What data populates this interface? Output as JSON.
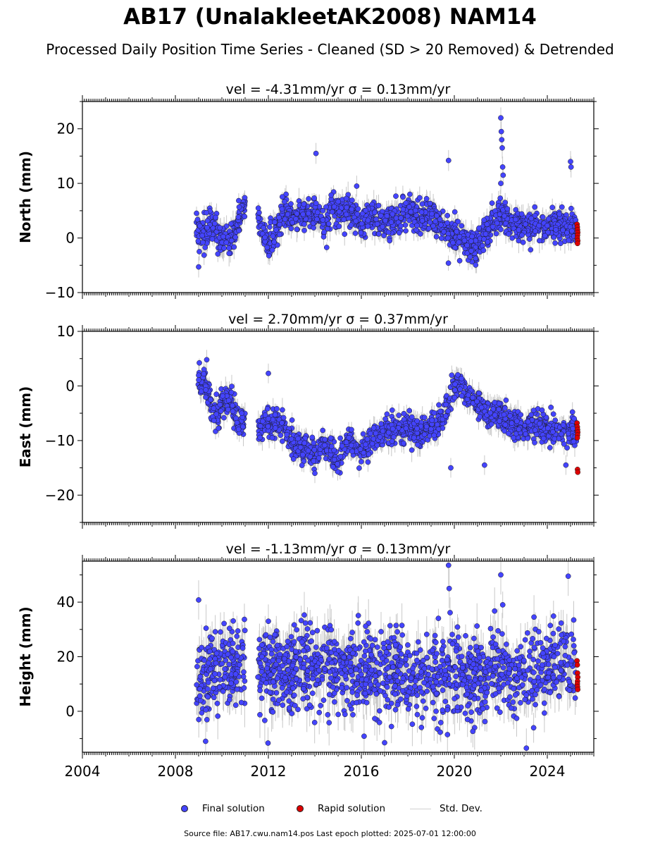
{
  "figure": {
    "title": "AB17 (UnalakleetAK2008) NAM14",
    "subtitle": "Processed Daily Position Time Series - Cleaned (SD > 20 Removed) & Detrended",
    "footer": "Source file: AB17.cwu.nam14.pos  Last epoch plotted: 2025-07-01 12:00:00"
  },
  "colors": {
    "final": "#4444ff",
    "rapid": "#dd0000",
    "stddev": "#c8c8c8",
    "marker_edge": "#1a1a1a"
  },
  "legend": {
    "final_label": "Final solution",
    "rapid_label": "Rapid solution",
    "stddev_label": "Std. Dev."
  },
  "chart_data": [
    {
      "type": "scatter",
      "title": "vel = -4.31mm/yr   σ = 0.13mm/yr",
      "ylabel": "North (mm)",
      "xlim": [
        2004.0,
        2026.0
      ],
      "ylim": [
        -10,
        25
      ],
      "yticks": [
        "−10",
        "0",
        "10",
        "20"
      ],
      "ytick_values": [
        -10,
        0,
        10,
        20
      ],
      "xticks": [],
      "data_span": [
        2008.9,
        2025.25
      ],
      "gap": [
        2011.0,
        2011.55
      ],
      "trend": [
        [
          2008.9,
          1.5
        ],
        [
          2009.2,
          0.5
        ],
        [
          2009.5,
          2.5
        ],
        [
          2009.8,
          1.0
        ],
        [
          2010.1,
          -1.0
        ],
        [
          2010.4,
          0.0
        ],
        [
          2010.8,
          4.0
        ],
        [
          2011.0,
          5.5
        ],
        [
          2011.6,
          3.5
        ],
        [
          2012.0,
          -1.0
        ],
        [
          2012.3,
          1.0
        ],
        [
          2012.7,
          5.0
        ],
        [
          2013.1,
          3.5
        ],
        [
          2013.5,
          4.5
        ],
        [
          2014.0,
          5.0
        ],
        [
          2014.4,
          3.0
        ],
        [
          2014.8,
          5.5
        ],
        [
          2015.2,
          4.5
        ],
        [
          2015.6,
          5.0
        ],
        [
          2016.0,
          2.5
        ],
        [
          2016.5,
          4.0
        ],
        [
          2017.0,
          2.5
        ],
        [
          2017.5,
          3.5
        ],
        [
          2018.0,
          5.0
        ],
        [
          2018.5,
          4.0
        ],
        [
          2019.0,
          4.0
        ],
        [
          2019.5,
          2.0
        ],
        [
          2020.0,
          0.5
        ],
        [
          2020.5,
          -1.0
        ],
        [
          2020.9,
          -2.0
        ],
        [
          2021.3,
          1.0
        ],
        [
          2021.7,
          3.0
        ],
        [
          2022.0,
          4.0
        ],
        [
          2022.5,
          3.0
        ],
        [
          2023.0,
          1.5
        ],
        [
          2023.5,
          3.0
        ],
        [
          2024.0,
          2.0
        ],
        [
          2024.5,
          2.5
        ],
        [
          2025.25,
          2.0
        ]
      ],
      "noise_sd": 1.4,
      "sigma_mean": 1.6,
      "outliers": [
        [
          2014.05,
          15.5
        ],
        [
          2019.75,
          14.2
        ],
        [
          2022.0,
          22.0
        ],
        [
          2022.02,
          19.5
        ],
        [
          2022.04,
          18.0
        ],
        [
          2022.06,
          16.5
        ],
        [
          2022.08,
          13.0
        ],
        [
          2022.1,
          11.5
        ],
        [
          2022.0,
          10.0
        ],
        [
          2025.0,
          14.0
        ],
        [
          2025.02,
          13.0
        ],
        [
          2009.0,
          -5.3
        ],
        [
          2015.8,
          9.5
        ]
      ],
      "rapid": {
        "x": [
          2025.28,
          2025.29,
          2025.3,
          2025.31,
          2025.3,
          2025.29,
          2025.31,
          2025.3
        ],
        "y": [
          2.5,
          2.0,
          1.5,
          1.0,
          0.5,
          0.0,
          -0.5,
          -1.0
        ]
      }
    },
    {
      "type": "scatter",
      "title": "vel = 2.70mm/yr   σ = 0.37mm/yr",
      "ylabel": "East (mm)",
      "xlim": [
        2004.0,
        2026.0
      ],
      "ylim": [
        -25,
        10
      ],
      "yticks": [
        "−20",
        "−10",
        "0",
        "10"
      ],
      "ytick_values": [
        -20,
        -10,
        0,
        10
      ],
      "xticks": [],
      "data_span": [
        2008.9,
        2025.25
      ],
      "gap": [
        2011.0,
        2011.55
      ],
      "trend": [
        [
          2008.9,
          0.0
        ],
        [
          2009.2,
          1.0
        ],
        [
          2009.5,
          -3.0
        ],
        [
          2009.8,
          -5.5
        ],
        [
          2010.1,
          -2.0
        ],
        [
          2010.4,
          -2.5
        ],
        [
          2010.7,
          -7.0
        ],
        [
          2011.0,
          -6.5
        ],
        [
          2011.6,
          -8.0
        ],
        [
          2011.9,
          -7.5
        ],
        [
          2012.3,
          -6.5
        ],
        [
          2012.7,
          -8.0
        ],
        [
          2013.1,
          -10.5
        ],
        [
          2013.5,
          -11.5
        ],
        [
          2014.0,
          -12.5
        ],
        [
          2014.5,
          -11.0
        ],
        [
          2015.0,
          -13.0
        ],
        [
          2015.5,
          -10.0
        ],
        [
          2016.0,
          -12.5
        ],
        [
          2016.5,
          -9.0
        ],
        [
          2017.0,
          -8.5
        ],
        [
          2017.5,
          -8.0
        ],
        [
          2018.0,
          -7.5
        ],
        [
          2018.5,
          -8.5
        ],
        [
          2019.0,
          -8.0
        ],
        [
          2019.5,
          -6.0
        ],
        [
          2019.9,
          -1.0
        ],
        [
          2020.2,
          0.5
        ],
        [
          2020.6,
          -2.5
        ],
        [
          2021.0,
          -3.0
        ],
        [
          2021.4,
          -5.5
        ],
        [
          2021.8,
          -5.0
        ],
        [
          2022.2,
          -6.0
        ],
        [
          2022.6,
          -7.0
        ],
        [
          2023.0,
          -8.0
        ],
        [
          2023.5,
          -7.0
        ],
        [
          2024.0,
          -8.0
        ],
        [
          2024.5,
          -8.5
        ],
        [
          2025.25,
          -8.0
        ]
      ],
      "noise_sd": 1.3,
      "sigma_mean": 1.5,
      "outliers": [
        [
          2009.35,
          4.8
        ],
        [
          2012.0,
          2.3
        ],
        [
          2014.0,
          -16.0
        ],
        [
          2019.85,
          -15.0
        ],
        [
          2021.3,
          -14.5
        ],
        [
          2024.8,
          -14.5
        ]
      ],
      "rapid": {
        "x": [
          2025.28,
          2025.29,
          2025.3,
          2025.31,
          2025.3,
          2025.29,
          2025.3,
          2025.31
        ],
        "y": [
          -6.8,
          -7.5,
          -8.0,
          -8.5,
          -9.0,
          -9.5,
          -15.3,
          -15.8
        ]
      }
    },
    {
      "type": "scatter",
      "title": "vel = -1.13mm/yr   σ = 0.13mm/yr",
      "ylabel": "Height (mm)",
      "xlim": [
        2004.0,
        2026.0
      ],
      "ylim": [
        -15,
        55
      ],
      "yticks": [
        "0",
        "20",
        "40"
      ],
      "ytick_values": [
        0,
        20,
        40
      ],
      "xticks": [
        "2004",
        "2008",
        "2012",
        "2016",
        "2020",
        "2024"
      ],
      "xtick_values": [
        2004,
        2008,
        2012,
        2016,
        2020,
        2024
      ],
      "data_span": [
        2008.9,
        2025.25
      ],
      "gap": [
        2011.0,
        2011.55
      ],
      "trend": [
        [
          2008.9,
          10.0
        ],
        [
          2009.5,
          15.0
        ],
        [
          2010.0,
          18.0
        ],
        [
          2010.5,
          17.0
        ],
        [
          2011.0,
          18.0
        ],
        [
          2011.6,
          16.0
        ],
        [
          2012.0,
          14.0
        ],
        [
          2012.5,
          15.0
        ],
        [
          2013.0,
          13.0
        ],
        [
          2013.5,
          15.0
        ],
        [
          2014.0,
          14.0
        ],
        [
          2014.5,
          16.0
        ],
        [
          2015.0,
          15.0
        ],
        [
          2015.5,
          14.0
        ],
        [
          2016.0,
          13.0
        ],
        [
          2016.5,
          16.0
        ],
        [
          2017.0,
          14.0
        ],
        [
          2017.5,
          14.0
        ],
        [
          2018.0,
          13.0
        ],
        [
          2018.5,
          15.0
        ],
        [
          2019.0,
          14.0
        ],
        [
          2019.5,
          13.0
        ],
        [
          2020.0,
          14.0
        ],
        [
          2020.5,
          12.0
        ],
        [
          2021.0,
          13.0
        ],
        [
          2021.5,
          14.0
        ],
        [
          2022.0,
          15.0
        ],
        [
          2022.5,
          12.0
        ],
        [
          2023.0,
          14.0
        ],
        [
          2023.5,
          15.0
        ],
        [
          2024.0,
          15.0
        ],
        [
          2024.5,
          18.0
        ],
        [
          2025.25,
          16.0
        ]
      ],
      "noise_sd": 7.5,
      "sigma_mean": 6.0,
      "outliers": [
        [
          2009.0,
          40.8
        ],
        [
          2019.75,
          53.5
        ],
        [
          2019.78,
          45.0
        ],
        [
          2022.0,
          50.0
        ],
        [
          2024.9,
          49.5
        ],
        [
          2017.0,
          -11.5
        ],
        [
          2023.1,
          -13.5
        ],
        [
          2009.3,
          -11.0
        ]
      ],
      "rapid": {
        "x": [
          2025.28,
          2025.29,
          2025.3,
          2025.31,
          2025.3,
          2025.29,
          2025.3,
          2025.31
        ],
        "y": [
          18.5,
          17.0,
          14.0,
          12.5,
          11.0,
          10.0,
          9.0,
          8.0
        ]
      }
    }
  ]
}
